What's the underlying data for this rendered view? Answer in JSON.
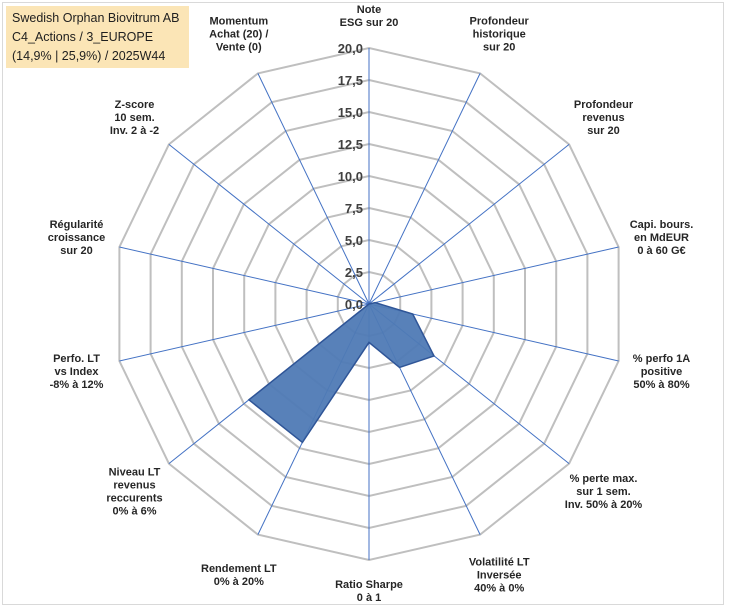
{
  "title_block": {
    "line1": "Swedish Orphan Biovitrum AB",
    "line2": "C4_Actions / 3_EUROPE",
    "line3": "(14,9% | 25,9%) / 2025W44"
  },
  "colors": {
    "fill": "#4f7ab5",
    "stroke": "#2f5597",
    "grid": "#bfbfbf",
    "spoke": "#4472c4",
    "title_bg": "#fbe5b6"
  },
  "chart_data": {
    "type": "radar",
    "rmin": 0,
    "rmax": 20,
    "rings": 8,
    "tick_labels": [
      "0,0",
      "2,5",
      "5,0",
      "7,5",
      "10,0",
      "12,5",
      "15,0",
      "17,5",
      "20,0"
    ],
    "axes": [
      {
        "lines": [
          "Note",
          "ESG sur 20"
        ],
        "value": 0
      },
      {
        "lines": [
          "Profondeur",
          "historique",
          "sur 20"
        ],
        "value": 0
      },
      {
        "lines": [
          "Profondeur",
          "revenus",
          "sur 20"
        ],
        "value": 0
      },
      {
        "lines": [
          "Capi. bours.",
          "en MdEUR",
          "0 à 60 G€"
        ],
        "value": 0.5
      },
      {
        "lines": [
          "% perfo 1A",
          "positive",
          "50% à 80%"
        ],
        "value": 3.5
      },
      {
        "lines": [
          "% perte max.",
          "sur 1 sem.",
          "Inv. 50% à 20%"
        ],
        "value": 6.5
      },
      {
        "lines": [
          "Volatilité LT",
          "Inversée",
          "40% à 0%"
        ],
        "value": 5.5
      },
      {
        "lines": [
          "Ratio Sharpe",
          "0 à 1"
        ],
        "value": 3
      },
      {
        "lines": [
          "Rendement LT",
          "0% à 20%"
        ],
        "value": 12
      },
      {
        "lines": [
          "Niveau LT",
          "revenus",
          "reccurents",
          "0% à 6%"
        ],
        "value": 12
      },
      {
        "lines": [
          "Perfo. LT",
          "vs Index",
          "-8% à 12%"
        ],
        "value": 0
      },
      {
        "lines": [
          "Régularité",
          "croissance",
          "sur 20"
        ],
        "value": 0
      },
      {
        "lines": [
          "Z-score",
          "10 sem.",
          "Inv. 2 à -2"
        ],
        "value": 0
      },
      {
        "lines": [
          "Momentum",
          "Achat (20) /",
          "Vente (0)"
        ],
        "value": 0
      }
    ]
  }
}
